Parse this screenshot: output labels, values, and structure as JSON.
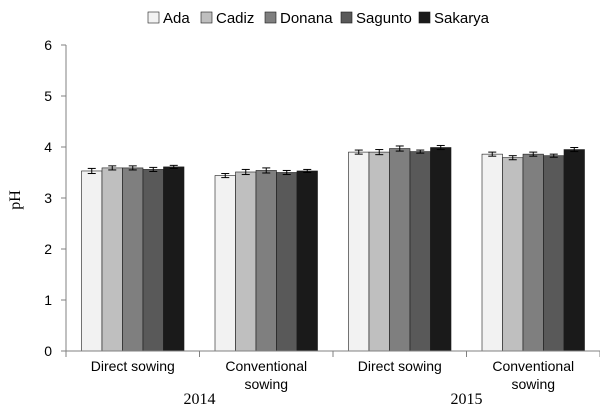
{
  "chart_data": {
    "type": "bar",
    "ylabel": "pH",
    "ylim": [
      0,
      6
    ],
    "yticks": [
      0,
      1,
      2,
      3,
      4,
      5,
      6
    ],
    "grid": false,
    "legend_position": "top",
    "groups": [
      {
        "year": "2014",
        "categories": [
          "Direct sowing",
          "Conventional sowing"
        ]
      },
      {
        "year": "2015",
        "categories": [
          "Direct sowing",
          "Conventional sowing"
        ]
      }
    ],
    "category_labels": [
      [
        "Direct sowing"
      ],
      [
        "Conventional",
        "sowing"
      ],
      [
        "Direct sowing"
      ],
      [
        "Conventional",
        "sowing"
      ]
    ],
    "year_labels": [
      "2014",
      "2015"
    ],
    "series": [
      {
        "name": "Ada",
        "color": "#f2f2f2",
        "values": [
          3.53,
          3.44,
          3.9,
          3.86
        ],
        "errors": [
          0.05,
          0.04,
          0.04,
          0.04
        ]
      },
      {
        "name": "Cadiz",
        "color": "#bfbfbf",
        "values": [
          3.59,
          3.51,
          3.9,
          3.79
        ],
        "errors": [
          0.04,
          0.05,
          0.05,
          0.04
        ]
      },
      {
        "name": "Donana",
        "color": "#7f7f7f",
        "values": [
          3.59,
          3.54,
          3.97,
          3.86
        ],
        "errors": [
          0.04,
          0.05,
          0.05,
          0.04
        ]
      },
      {
        "name": "Sagunto",
        "color": "#595959",
        "values": [
          3.56,
          3.5,
          3.91,
          3.83
        ],
        "errors": [
          0.04,
          0.04,
          0.03,
          0.03
        ]
      },
      {
        "name": "Sakarya",
        "color": "#1a1a1a",
        "values": [
          3.61,
          3.53,
          3.99,
          3.95
        ],
        "errors": [
          0.03,
          0.03,
          0.04,
          0.04
        ]
      }
    ]
  }
}
